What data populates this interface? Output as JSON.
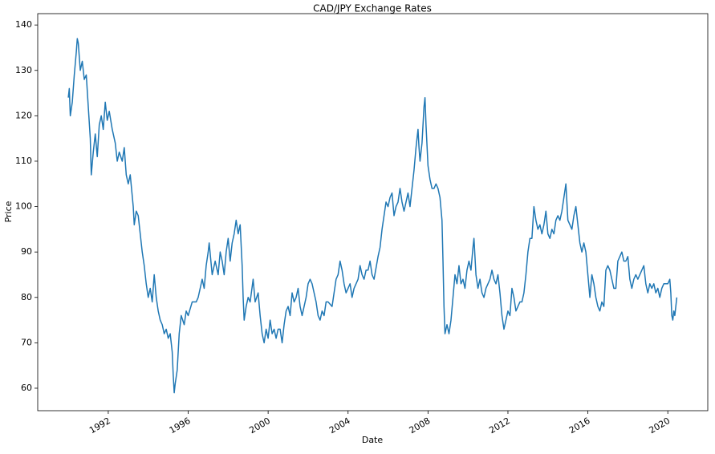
{
  "chart_data": {
    "type": "line",
    "title": "CAD/JPY Exchange Rates",
    "xlabel": "Date",
    "ylabel": "Price",
    "x": [
      1990.0,
      1990.05,
      1990.1,
      1990.2,
      1990.3,
      1990.4,
      1990.45,
      1990.5,
      1990.6,
      1990.7,
      1990.8,
      1990.9,
      1991.0,
      1991.1,
      1991.15,
      1991.25,
      1991.35,
      1991.45,
      1991.55,
      1991.65,
      1991.75,
      1991.85,
      1991.95,
      1992.05,
      1992.2,
      1992.35,
      1992.45,
      1992.55,
      1992.7,
      1992.8,
      1992.9,
      1993.0,
      1993.1,
      1993.25,
      1993.3,
      1993.4,
      1993.5,
      1993.6,
      1993.7,
      1993.8,
      1993.9,
      1994.0,
      1994.1,
      1994.2,
      1994.3,
      1994.4,
      1994.5,
      1994.6,
      1994.7,
      1994.8,
      1994.9,
      1995.0,
      1995.1,
      1995.2,
      1995.25,
      1995.3,
      1995.35,
      1995.45,
      1995.55,
      1995.65,
      1995.8,
      1995.9,
      1996.0,
      1996.2,
      1996.4,
      1996.5,
      1996.7,
      1996.8,
      1996.9,
      1997.0,
      1997.05,
      1997.2,
      1997.35,
      1997.5,
      1997.6,
      1997.7,
      1997.8,
      1997.9,
      1998.0,
      1998.1,
      1998.2,
      1998.3,
      1998.4,
      1998.5,
      1998.6,
      1998.7,
      1998.75,
      1998.8,
      1998.9,
      1999.0,
      1999.1,
      1999.25,
      1999.35,
      1999.5,
      1999.6,
      1999.7,
      1999.8,
      1999.9,
      2000.0,
      2000.1,
      2000.2,
      2000.3,
      2000.4,
      2000.5,
      2000.6,
      2000.7,
      2000.8,
      2000.9,
      2001.0,
      2001.1,
      2001.2,
      2001.3,
      2001.4,
      2001.5,
      2001.6,
      2001.7,
      2001.8,
      2001.9,
      2002.0,
      2002.1,
      2002.2,
      2002.3,
      2002.4,
      2002.5,
      2002.6,
      2002.7,
      2002.8,
      2002.9,
      2003.0,
      2003.2,
      2003.4,
      2003.5,
      2003.6,
      2003.7,
      2003.8,
      2003.9,
      2004.0,
      2004.1,
      2004.2,
      2004.3,
      2004.4,
      2004.5,
      2004.6,
      2004.7,
      2004.8,
      2004.9,
      2005.0,
      2005.1,
      2005.2,
      2005.3,
      2005.5,
      2005.6,
      2005.7,
      2005.8,
      2005.9,
      2006.0,
      2006.1,
      2006.2,
      2006.3,
      2006.4,
      2006.5,
      2006.6,
      2006.7,
      2006.8,
      2006.9,
      2007.0,
      2007.1,
      2007.2,
      2007.3,
      2007.4,
      2007.5,
      2007.55,
      2007.6,
      2007.7,
      2007.8,
      2007.85,
      2007.9,
      2008.0,
      2008.1,
      2008.2,
      2008.3,
      2008.4,
      2008.5,
      2008.6,
      2008.7,
      2008.75,
      2008.8,
      2008.85,
      2008.95,
      2009.05,
      2009.15,
      2009.25,
      2009.35,
      2009.45,
      2009.55,
      2009.65,
      2009.75,
      2009.85,
      2009.95,
      2010.05,
      2010.15,
      2010.25,
      2010.3,
      2010.4,
      2010.5,
      2010.6,
      2010.7,
      2010.8,
      2010.9,
      2011.0,
      2011.1,
      2011.2,
      2011.3,
      2011.4,
      2011.5,
      2011.6,
      2011.7,
      2011.8,
      2011.9,
      2012.0,
      2012.1,
      2012.2,
      2012.3,
      2012.4,
      2012.5,
      2012.6,
      2012.7,
      2012.8,
      2012.9,
      2013.0,
      2013.1,
      2013.2,
      2013.3,
      2013.4,
      2013.5,
      2013.6,
      2013.7,
      2013.8,
      2013.9,
      2014.0,
      2014.1,
      2014.2,
      2014.3,
      2014.4,
      2014.5,
      2014.6,
      2014.7,
      2014.8,
      2014.9,
      2015.0,
      2015.1,
      2015.2,
      2015.3,
      2015.4,
      2015.5,
      2015.6,
      2015.7,
      2015.8,
      2015.9,
      2016.0,
      2016.1,
      2016.2,
      2016.3,
      2016.4,
      2016.5,
      2016.6,
      2016.7,
      2016.8,
      2016.9,
      2017.0,
      2017.1,
      2017.2,
      2017.3,
      2017.4,
      2017.5,
      2017.6,
      2017.7,
      2017.8,
      2017.9,
      2018.0,
      2018.1,
      2018.2,
      2018.3,
      2018.4,
      2018.5,
      2018.6,
      2018.7,
      2018.8,
      2018.9,
      2019.0,
      2019.1,
      2019.2,
      2019.3,
      2019.4,
      2019.5,
      2019.6,
      2019.7,
      2019.8,
      2019.9,
      2020.0,
      2020.1,
      2020.15,
      2020.2,
      2020.25,
      2020.3,
      2020.35,
      2020.4,
      2020.45
    ],
    "values": [
      124,
      126,
      120,
      123,
      129,
      134,
      137,
      136,
      130,
      132,
      128,
      129,
      122,
      115,
      107,
      112,
      116,
      111,
      118,
      120,
      117,
      123,
      119,
      121,
      117,
      114,
      110,
      112,
      110,
      113,
      107,
      105,
      107,
      100,
      96,
      99,
      98,
      94,
      90,
      87,
      83,
      80,
      82,
      79,
      85,
      80,
      77,
      75,
      74,
      72,
      73,
      71,
      72,
      68,
      63,
      59,
      61,
      64,
      72,
      76,
      74,
      77,
      76,
      79,
      79,
      80,
      84,
      82,
      87,
      90,
      92,
      85,
      88,
      85,
      90,
      88,
      85,
      90,
      93,
      88,
      92,
      94,
      97,
      94,
      96,
      87,
      80,
      75,
      78,
      80,
      79,
      84,
      79,
      81,
      76,
      72,
      70,
      73,
      71,
      75,
      72,
      73,
      71,
      73,
      73,
      70,
      74,
      77,
      78,
      76,
      81,
      79,
      80,
      82,
      78,
      76,
      78,
      80,
      83,
      84,
      83,
      81,
      79,
      76,
      75,
      77,
      76,
      79,
      79,
      78,
      84,
      85,
      88,
      86,
      83,
      81,
      82,
      83,
      80,
      82,
      83,
      84,
      87,
      85,
      84,
      86,
      86,
      88,
      85,
      84,
      89,
      91,
      95,
      98,
      101,
      100,
      102,
      103,
      98,
      100,
      101,
      104,
      101,
      99,
      101,
      103,
      100,
      104,
      108,
      113,
      117,
      113,
      110,
      114,
      122,
      124,
      118,
      109,
      106,
      104,
      104,
      105,
      104,
      102,
      97,
      88,
      78,
      72,
      74,
      72,
      75,
      80,
      85,
      83,
      87,
      83,
      84,
      82,
      86,
      88,
      86,
      91,
      93,
      85,
      82,
      84,
      81,
      80,
      82,
      83,
      84,
      86,
      84,
      83,
      85,
      81,
      76,
      73,
      75,
      77,
      76,
      82,
      80,
      77,
      78,
      79,
      79,
      81,
      85,
      90,
      93,
      93,
      100,
      97,
      95,
      96,
      94,
      96,
      99,
      94,
      93,
      95,
      94,
      97,
      98,
      97,
      99,
      102,
      105,
      97,
      96,
      95,
      98,
      100,
      96,
      92,
      90,
      92,
      90,
      85,
      80,
      85,
      83,
      80,
      78,
      77,
      79,
      78,
      86,
      87,
      86,
      84,
      82,
      82,
      88,
      89,
      90,
      88,
      88,
      89,
      84,
      82,
      84,
      85,
      84,
      85,
      86,
      87,
      83,
      81,
      83,
      82,
      83,
      81,
      82,
      80,
      82,
      83,
      83,
      83,
      84,
      81,
      76,
      75,
      77,
      76,
      78,
      80
    ],
    "color": "#1f77b4",
    "xlim": [
      1988.47,
      2022.0
    ],
    "xticks": [
      1992,
      1996,
      2000,
      2004,
      2008,
      2012,
      2016,
      2020
    ],
    "ylim": [
      55.05,
      142.5
    ],
    "yticks": [
      60,
      70,
      80,
      90,
      100,
      110,
      120,
      130,
      140
    ]
  }
}
